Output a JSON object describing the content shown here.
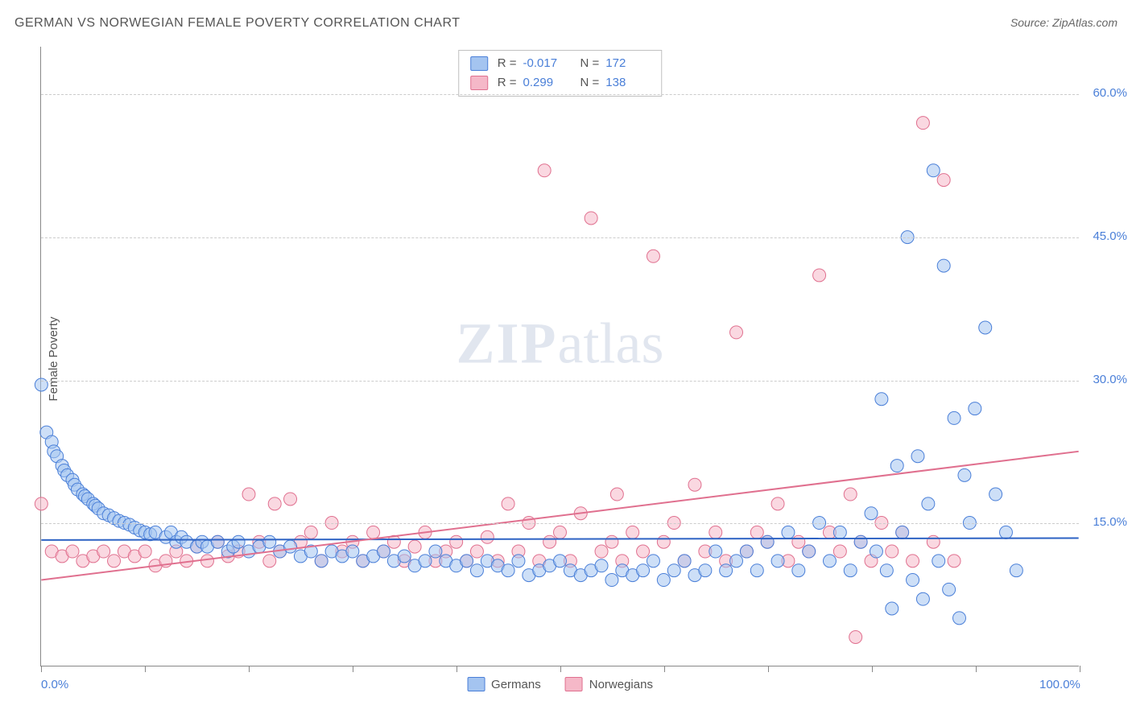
{
  "title": "GERMAN VS NORWEGIAN FEMALE POVERTY CORRELATION CHART",
  "title_color": "#555555",
  "title_fontsize": 16,
  "source_label": "Source: ZipAtlas.com",
  "y_axis_label": "Female Poverty",
  "watermark_zip": "ZIP",
  "watermark_atlas": "atlas",
  "chart": {
    "type": "scatter",
    "xlim": [
      0,
      100
    ],
    "ylim": [
      0,
      65
    ],
    "x_ticks": [
      0,
      10,
      20,
      30,
      40,
      50,
      60,
      70,
      80,
      90,
      100
    ],
    "x_tick_labels": {
      "0": "0.0%",
      "100": "100.0%"
    },
    "y_ticks": [
      15,
      30,
      45,
      60
    ],
    "y_tick_labels": {
      "15": "15.0%",
      "30": "30.0%",
      "45": "45.0%",
      "60": "60.0%"
    },
    "background_color": "#ffffff",
    "grid_color": "#cccccc",
    "axis_color": "#888888",
    "point_radius": 8,
    "point_opacity": 0.55,
    "series": [
      {
        "name": "Germans",
        "fill_color": "#a4c4f0",
        "stroke_color": "#4a7fd8",
        "R": "-0.017",
        "N": "172",
        "trend": {
          "y_at_x0": 13.2,
          "y_at_x100": 13.4,
          "color": "#2e63c4",
          "width": 2
        },
        "points": [
          [
            0,
            29.5
          ],
          [
            0.5,
            24.5
          ],
          [
            1,
            23.5
          ],
          [
            1.2,
            22.5
          ],
          [
            1.5,
            22
          ],
          [
            2,
            21
          ],
          [
            2.2,
            20.5
          ],
          [
            2.5,
            20
          ],
          [
            3,
            19.5
          ],
          [
            3.2,
            19
          ],
          [
            3.5,
            18.5
          ],
          [
            4,
            18
          ],
          [
            4.2,
            17.8
          ],
          [
            4.5,
            17.5
          ],
          [
            5,
            17
          ],
          [
            5.2,
            16.8
          ],
          [
            5.5,
            16.5
          ],
          [
            6,
            16
          ],
          [
            6.5,
            15.8
          ],
          [
            7,
            15.5
          ],
          [
            7.5,
            15.2
          ],
          [
            8,
            15
          ],
          [
            8.5,
            14.8
          ],
          [
            9,
            14.5
          ],
          [
            9.5,
            14.2
          ],
          [
            10,
            14
          ],
          [
            10.5,
            13.8
          ],
          [
            11,
            14
          ],
          [
            12,
            13.5
          ],
          [
            12.5,
            14
          ],
          [
            13,
            13
          ],
          [
            13.5,
            13.5
          ],
          [
            14,
            13
          ],
          [
            15,
            12.5
          ],
          [
            15.5,
            13
          ],
          [
            16,
            12.5
          ],
          [
            17,
            13
          ],
          [
            18,
            12
          ],
          [
            18.5,
            12.5
          ],
          [
            19,
            13
          ],
          [
            20,
            12
          ],
          [
            21,
            12.5
          ],
          [
            22,
            13
          ],
          [
            23,
            12
          ],
          [
            24,
            12.5
          ],
          [
            25,
            11.5
          ],
          [
            26,
            12
          ],
          [
            27,
            11
          ],
          [
            28,
            12
          ],
          [
            29,
            11.5
          ],
          [
            30,
            12
          ],
          [
            31,
            11
          ],
          [
            32,
            11.5
          ],
          [
            33,
            12
          ],
          [
            34,
            11
          ],
          [
            35,
            11.5
          ],
          [
            36,
            10.5
          ],
          [
            37,
            11
          ],
          [
            38,
            12
          ],
          [
            39,
            11
          ],
          [
            40,
            10.5
          ],
          [
            41,
            11
          ],
          [
            42,
            10
          ],
          [
            43,
            11
          ],
          [
            44,
            10.5
          ],
          [
            45,
            10
          ],
          [
            46,
            11
          ],
          [
            47,
            9.5
          ],
          [
            48,
            10
          ],
          [
            49,
            10.5
          ],
          [
            50,
            11
          ],
          [
            51,
            10
          ],
          [
            52,
            9.5
          ],
          [
            53,
            10
          ],
          [
            54,
            10.5
          ],
          [
            55,
            9
          ],
          [
            56,
            10
          ],
          [
            57,
            9.5
          ],
          [
            58,
            10
          ],
          [
            59,
            11
          ],
          [
            60,
            9
          ],
          [
            61,
            10
          ],
          [
            62,
            11
          ],
          [
            63,
            9.5
          ],
          [
            64,
            10
          ],
          [
            65,
            12
          ],
          [
            66,
            10
          ],
          [
            67,
            11
          ],
          [
            68,
            12
          ],
          [
            69,
            10
          ],
          [
            70,
            13
          ],
          [
            71,
            11
          ],
          [
            72,
            14
          ],
          [
            73,
            10
          ],
          [
            74,
            12
          ],
          [
            75,
            15
          ],
          [
            76,
            11
          ],
          [
            77,
            14
          ],
          [
            78,
            10
          ],
          [
            79,
            13
          ],
          [
            80,
            16
          ],
          [
            80.5,
            12
          ],
          [
            81,
            28
          ],
          [
            81.5,
            10
          ],
          [
            82,
            6
          ],
          [
            82.5,
            21
          ],
          [
            83,
            14
          ],
          [
            83.5,
            45
          ],
          [
            84,
            9
          ],
          [
            84.5,
            22
          ],
          [
            85,
            7
          ],
          [
            85.5,
            17
          ],
          [
            86,
            52
          ],
          [
            86.5,
            11
          ],
          [
            87,
            42
          ],
          [
            87.5,
            8
          ],
          [
            88,
            26
          ],
          [
            88.5,
            5
          ],
          [
            89,
            20
          ],
          [
            89.5,
            15
          ],
          [
            90,
            27
          ],
          [
            91,
            35.5
          ],
          [
            92,
            18
          ],
          [
            93,
            14
          ],
          [
            94,
            10
          ]
        ]
      },
      {
        "name": "Norwegians",
        "fill_color": "#f5b8c8",
        "stroke_color": "#e0708f",
        "R": "0.299",
        "N": "138",
        "trend": {
          "y_at_x0": 9,
          "y_at_x100": 22.5,
          "color": "#e0708f",
          "width": 2
        },
        "points": [
          [
            0,
            17
          ],
          [
            1,
            12
          ],
          [
            2,
            11.5
          ],
          [
            3,
            12
          ],
          [
            4,
            11
          ],
          [
            5,
            11.5
          ],
          [
            6,
            12
          ],
          [
            7,
            11
          ],
          [
            8,
            12
          ],
          [
            9,
            11.5
          ],
          [
            10,
            12
          ],
          [
            11,
            10.5
          ],
          [
            12,
            11
          ],
          [
            13,
            12
          ],
          [
            14,
            11
          ],
          [
            15,
            12.5
          ],
          [
            16,
            11
          ],
          [
            17,
            13
          ],
          [
            18,
            11.5
          ],
          [
            19,
            12
          ],
          [
            20,
            18
          ],
          [
            21,
            13
          ],
          [
            22,
            11
          ],
          [
            22.5,
            17
          ],
          [
            23,
            12
          ],
          [
            24,
            17.5
          ],
          [
            25,
            13
          ],
          [
            26,
            14
          ],
          [
            27,
            11
          ],
          [
            28,
            15
          ],
          [
            29,
            12
          ],
          [
            30,
            13
          ],
          [
            31,
            11
          ],
          [
            32,
            14
          ],
          [
            33,
            12
          ],
          [
            34,
            13
          ],
          [
            35,
            11
          ],
          [
            36,
            12.5
          ],
          [
            37,
            14
          ],
          [
            38,
            11
          ],
          [
            39,
            12
          ],
          [
            40,
            13
          ],
          [
            41,
            11
          ],
          [
            42,
            12
          ],
          [
            43,
            13.5
          ],
          [
            44,
            11
          ],
          [
            45,
            17
          ],
          [
            46,
            12
          ],
          [
            47,
            15
          ],
          [
            48,
            11
          ],
          [
            48.5,
            52
          ],
          [
            49,
            13
          ],
          [
            50,
            14
          ],
          [
            51,
            11
          ],
          [
            52,
            16
          ],
          [
            53,
            47
          ],
          [
            54,
            12
          ],
          [
            55,
            13
          ],
          [
            55.5,
            18
          ],
          [
            56,
            11
          ],
          [
            57,
            14
          ],
          [
            58,
            12
          ],
          [
            59,
            43
          ],
          [
            60,
            13
          ],
          [
            61,
            15
          ],
          [
            62,
            11
          ],
          [
            63,
            19
          ],
          [
            64,
            12
          ],
          [
            65,
            14
          ],
          [
            66,
            11
          ],
          [
            67,
            35
          ],
          [
            68,
            12
          ],
          [
            69,
            14
          ],
          [
            70,
            13
          ],
          [
            71,
            17
          ],
          [
            72,
            11
          ],
          [
            73,
            13
          ],
          [
            74,
            12
          ],
          [
            75,
            41
          ],
          [
            76,
            14
          ],
          [
            77,
            12
          ],
          [
            78,
            18
          ],
          [
            79,
            13
          ],
          [
            80,
            11
          ],
          [
            81,
            15
          ],
          [
            82,
            12
          ],
          [
            83,
            14
          ],
          [
            84,
            11
          ],
          [
            85,
            57
          ],
          [
            86,
            13
          ],
          [
            87,
            51
          ],
          [
            88,
            11
          ],
          [
            78.5,
            3
          ]
        ]
      }
    ]
  },
  "stats_labels": {
    "R": "R =",
    "N": "N ="
  },
  "legend": [
    {
      "label": "Germans",
      "fill": "#a4c4f0",
      "stroke": "#4a7fd8"
    },
    {
      "label": "Norwegians",
      "fill": "#f5b8c8",
      "stroke": "#e0708f"
    }
  ]
}
